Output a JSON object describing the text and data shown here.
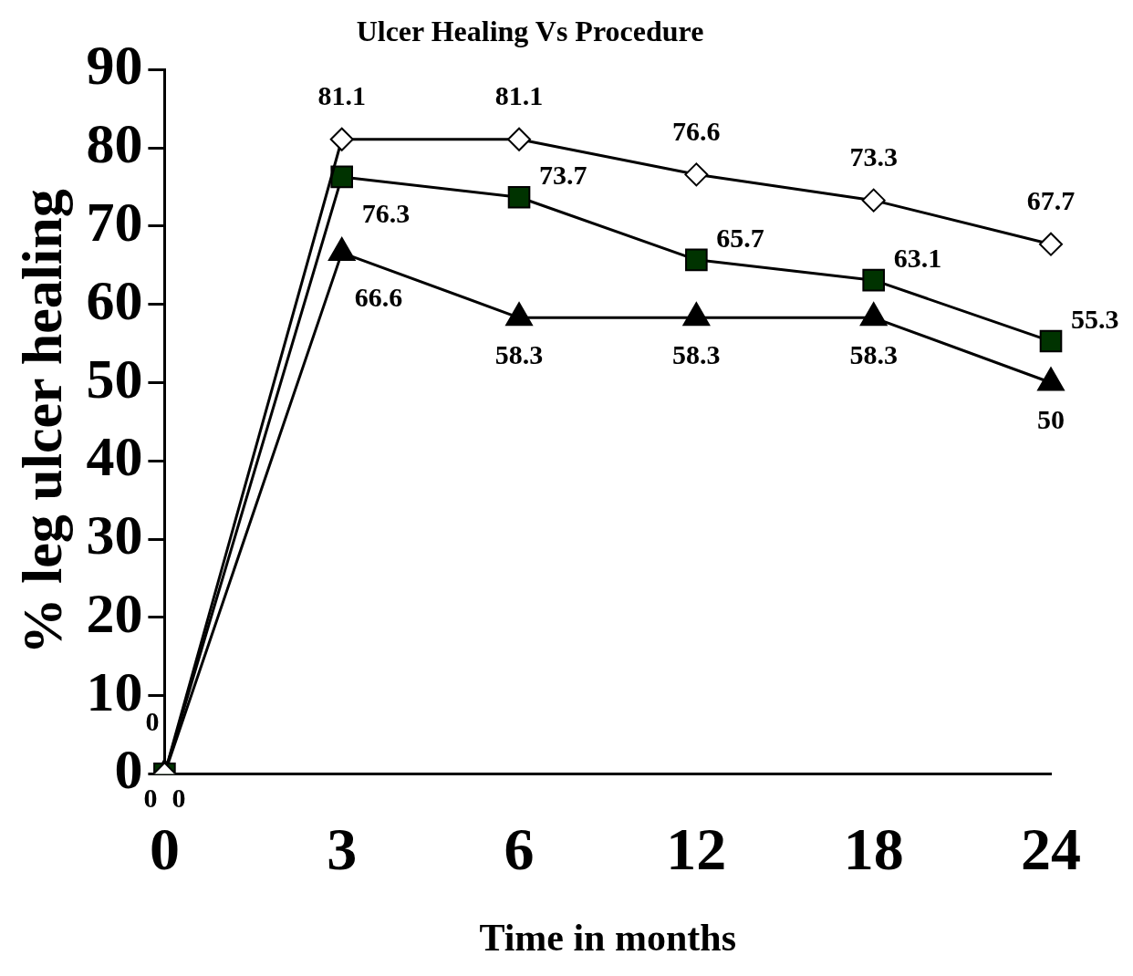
{
  "chart_data": {
    "type": "line",
    "title": "Ulcer Healing Vs Procedure",
    "xlabel": "Time in months",
    "ylabel": "% leg ulcer healing",
    "categories": [
      "0",
      "3",
      "6",
      "12",
      "18",
      "24"
    ],
    "series": [
      {
        "color": "#ffffff",
        "marker": "diamond",
        "values": [
          0,
          81.1,
          81.1,
          76.6,
          73.3,
          67.7
        ]
      },
      {
        "color": "#003300",
        "marker": "square",
        "values": [
          0,
          76.3,
          73.7,
          65.7,
          63.1,
          55.3
        ]
      },
      {
        "color": "#000000",
        "marker": "triangle",
        "values": [
          0,
          66.6,
          58.3,
          58.3,
          58.3,
          50
        ]
      }
    ],
    "ylim": [
      0,
      90
    ],
    "yticks": [
      0,
      10,
      20,
      30,
      40,
      50,
      60,
      70,
      80,
      90
    ],
    "grid": false,
    "legend": false,
    "data_labels": true,
    "line_style": "solid"
  }
}
